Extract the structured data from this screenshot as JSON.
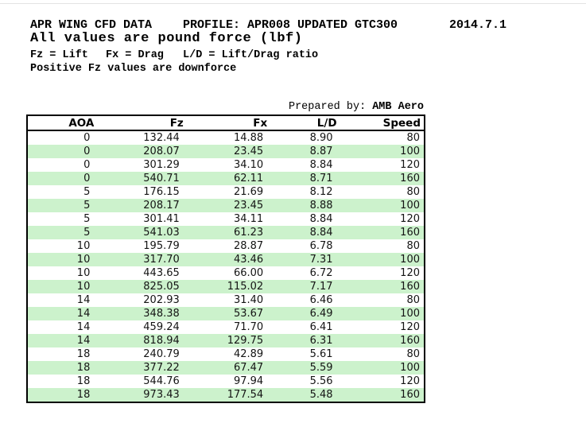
{
  "header": {
    "title": "APR WING CFD DATA",
    "profile": "PROFILE: APR008 UPDATED GTC300",
    "date": "2014.7.1",
    "subtitle": "All values are pound force (lbf)",
    "legend_fz": "Fz = Lift",
    "legend_fx": "Fx = Drag",
    "legend_ld": "L/D = Lift/Drag ratio",
    "note": "Positive Fz values are downforce"
  },
  "prepared_by": {
    "label": "Prepared by:",
    "value": "AMB Aero"
  },
  "table": {
    "columns": [
      "AOA",
      "Fz",
      "Fx",
      "L/D",
      "Speed"
    ],
    "rows": [
      [
        "0",
        "132.44",
        "14.88",
        "8.90",
        "80"
      ],
      [
        "0",
        "208.07",
        "23.45",
        "8.87",
        "100"
      ],
      [
        "0",
        "301.29",
        "34.10",
        "8.84",
        "120"
      ],
      [
        "0",
        "540.71",
        "62.11",
        "8.71",
        "160"
      ],
      [
        "5",
        "176.15",
        "21.69",
        "8.12",
        "80"
      ],
      [
        "5",
        "208.17",
        "23.45",
        "8.88",
        "100"
      ],
      [
        "5",
        "301.41",
        "34.11",
        "8.84",
        "120"
      ],
      [
        "5",
        "541.03",
        "61.23",
        "8.84",
        "160"
      ],
      [
        "10",
        "195.79",
        "28.87",
        "6.78",
        "80"
      ],
      [
        "10",
        "317.70",
        "43.46",
        "7.31",
        "100"
      ],
      [
        "10",
        "443.65",
        "66.00",
        "6.72",
        "120"
      ],
      [
        "10",
        "825.05",
        "115.02",
        "7.17",
        "160"
      ],
      [
        "14",
        "202.93",
        "31.40",
        "6.46",
        "80"
      ],
      [
        "14",
        "348.38",
        "53.67",
        "6.49",
        "100"
      ],
      [
        "14",
        "459.24",
        "71.70",
        "6.41",
        "120"
      ],
      [
        "14",
        "818.94",
        "129.75",
        "6.31",
        "160"
      ],
      [
        "18",
        "240.79",
        "42.89",
        "5.61",
        "80"
      ],
      [
        "18",
        "377.22",
        "67.47",
        "5.59",
        "100"
      ],
      [
        "18",
        "544.76",
        "97.94",
        "5.56",
        "120"
      ],
      [
        "18",
        "973.43",
        "177.54",
        "5.48",
        "160"
      ]
    ]
  },
  "colors": {
    "row_stripe_green": "#ccf2cc",
    "table_border": "#000000",
    "top_hairline": "#e3e3e3"
  }
}
